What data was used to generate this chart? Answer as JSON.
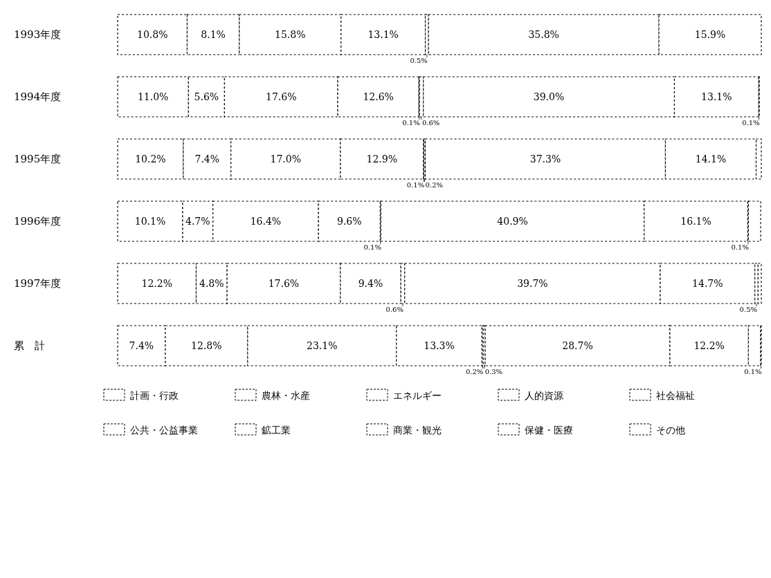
{
  "chart_data": {
    "type": "bar",
    "orientation": "horizontal",
    "stacked": true,
    "legend": "bottom",
    "tick_labels": "y",
    "categories": [
      "1993年度",
      "1994年度",
      "1995年度",
      "1996年度",
      "1997年度",
      "累　計"
    ],
    "xlim": [
      0,
      100
    ],
    "series": [
      {
        "name": "計画・行政",
        "color": "#ffffff",
        "values": [
          10.8,
          11.0,
          10.2,
          10.1,
          12.2,
          7.4
        ],
        "value_labels": [
          "10.8%",
          "11.0%",
          "10.2%",
          "10.1%",
          "12.2%",
          "7.4%"
        ]
      },
      {
        "name": "公共・公益事業",
        "color": "#ffffff",
        "values": [
          8.1,
          5.6,
          7.4,
          4.7,
          4.8,
          12.8
        ],
        "value_labels": [
          "8.1%",
          "5.6%",
          "7.4%",
          "4.7%",
          "4.8%",
          "12.8%"
        ]
      },
      {
        "name": "農林・水産",
        "color": "#ffffff",
        "values": [
          15.8,
          17.6,
          17.0,
          16.4,
          17.6,
          23.1
        ],
        "value_labels": [
          "15.8%",
          "17.6%",
          "17.0%",
          "16.4%",
          "17.6%",
          "23.1%"
        ]
      },
      {
        "name": "鉱工業",
        "color": "#ffffff",
        "values": [
          13.1,
          12.6,
          12.9,
          9.6,
          9.4,
          13.3
        ],
        "value_labels": [
          "13.1%",
          "12.6%",
          "12.9%",
          "9.6%",
          "9.4%",
          "13.3%"
        ]
      },
      {
        "name": "エネルギー",
        "color": "#ffffff",
        "values": [
          null,
          0.1,
          0.1,
          0.1,
          0.6,
          0.2
        ],
        "value_labels": [
          null,
          "0.1%",
          "0.1%",
          "0.1%",
          "0.6%",
          "0.2%"
        ]
      },
      {
        "name": "商業・観光",
        "color": "#ffffff",
        "values": [
          0.5,
          0.6,
          0.2,
          null,
          null,
          0.3
        ],
        "value_labels": [
          "0.5%",
          "0.6%",
          "0.2%",
          null,
          null,
          "0.3%"
        ]
      },
      {
        "name": "人的資源",
        "color": "#ffffff",
        "values": [
          35.8,
          39.0,
          37.3,
          40.9,
          39.7,
          28.7
        ],
        "value_labels": [
          "35.8%",
          "39.0%",
          "37.3%",
          "40.9%",
          "39.7%",
          "28.7%"
        ]
      },
      {
        "name": "保健・医療",
        "color": "#ffffff",
        "values": [
          15.9,
          13.1,
          14.1,
          16.1,
          14.7,
          12.2
        ],
        "value_labels": [
          "15.9%",
          "13.1%",
          "14.1%",
          "16.1%",
          "14.7%",
          "12.2%"
        ]
      },
      {
        "name": "社会福祉",
        "color": "#ffffff",
        "values": [
          null,
          null,
          null,
          0.1,
          0.5,
          1.9
        ],
        "value_labels": [
          null,
          null,
          null,
          "0.1%",
          "0.5%",
          null
        ]
      },
      {
        "name": "その他",
        "color": "#ffffff",
        "values": [
          null,
          0.1,
          0.8,
          1.9,
          0.5,
          0.1
        ],
        "value_labels": [
          null,
          "0.1%",
          null,
          null,
          null,
          "0.1%"
        ]
      }
    ]
  }
}
